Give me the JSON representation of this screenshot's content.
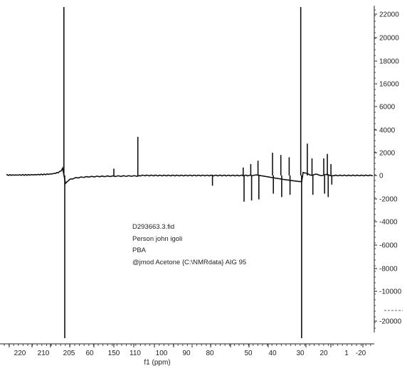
{
  "chart_data": {
    "type": "line",
    "xlabel": "f1 (ppm)",
    "x_tick_labels": [
      "220",
      "210",
      "205",
      "60",
      "150",
      "110",
      "100",
      "90",
      "80",
      "50",
      "40",
      "30",
      "20",
      "1",
      "-20"
    ],
    "y_tick_labels": [
      "22000",
      "20000",
      "18000",
      "16000",
      "6000",
      "4000",
      "2000",
      "0",
      "-2000",
      "-4000",
      "-6000",
      "-8000",
      "-10000",
      "-20000"
    ],
    "baseline": 0,
    "series": [
      {
        "type": "peaks",
        "points": [
          {
            "ppm": 206,
            "intensity": 16500,
            "negative_tail": -21000
          },
          {
            "ppm": 150,
            "intensity": 600
          },
          {
            "ppm": 109,
            "intensity": 3400
          },
          {
            "ppm": 78,
            "intensity": -900
          },
          {
            "ppm": 54,
            "intensity": 700,
            "negative_tail": -2300
          },
          {
            "ppm": 49,
            "intensity": 1000,
            "negative_tail": -2200
          },
          {
            "ppm": 46,
            "intensity": 1300,
            "negative_tail": -2100
          },
          {
            "ppm": 40,
            "intensity": 2000,
            "negative_tail": -1600
          },
          {
            "ppm": 37,
            "intensity": 1800,
            "negative_tail": -1900
          },
          {
            "ppm": 34,
            "intensity": 1600,
            "negative_tail": -1700
          },
          {
            "ppm": 29.8,
            "intensity": 22500,
            "negative_tail": -22000
          },
          {
            "ppm": 27,
            "intensity": 2800
          },
          {
            "ppm": 25,
            "intensity": 1500,
            "negative_tail": -1700
          },
          {
            "ppm": 20,
            "intensity": 1500,
            "negative_tail": -1600
          },
          {
            "ppm": 17,
            "intensity": 1900,
            "negative_tail": -1900
          },
          {
            "ppm": 14,
            "intensity": 1000,
            "negative_tail": -800
          }
        ]
      }
    ]
  },
  "annotation": {
    "lines": [
      "D293663.3.fid",
      "Person john igoli",
      "PBA",
      "@jmod Acetone {C:\\NMRdata} AIG 95"
    ]
  }
}
